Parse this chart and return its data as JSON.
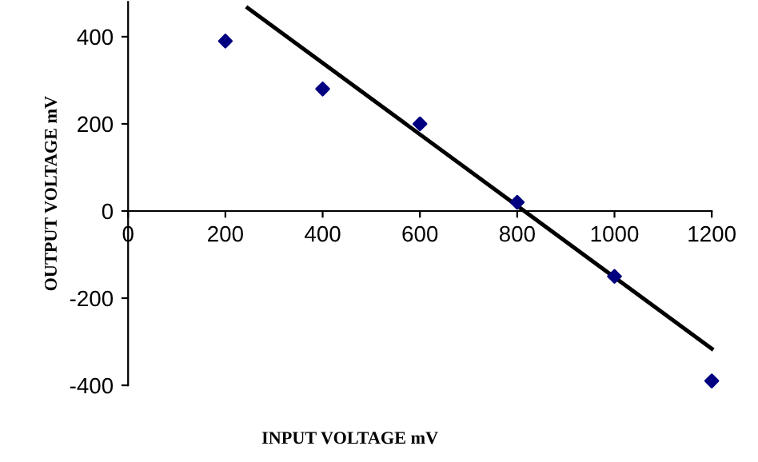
{
  "chart_data": {
    "type": "scatter",
    "xlabel": "INPUT VOLTAGE mV",
    "ylabel": "OUTPUT VOLTAGE mV",
    "x": [
      200,
      400,
      600,
      800,
      1000,
      1200
    ],
    "series": [
      {
        "color": "#000080",
        "values": [
          390,
          280,
          200,
          20,
          -150,
          -390
        ],
        "marker": "diamond"
      },
      {
        "type": "line",
        "color": "#000000",
        "x": [
          246,
          1200
        ],
        "values": [
          466,
          -316
        ],
        "marker": "none",
        "line_style": "solid"
      }
    ],
    "xlim": [
      0,
      1200
    ],
    "ylim": [
      -400,
      480
    ],
    "xticks": [
      0,
      200,
      400,
      600,
      800,
      1000,
      1200
    ],
    "yticks": [
      -400,
      -200,
      0,
      200,
      400
    ],
    "grid": false,
    "legend": false
  }
}
